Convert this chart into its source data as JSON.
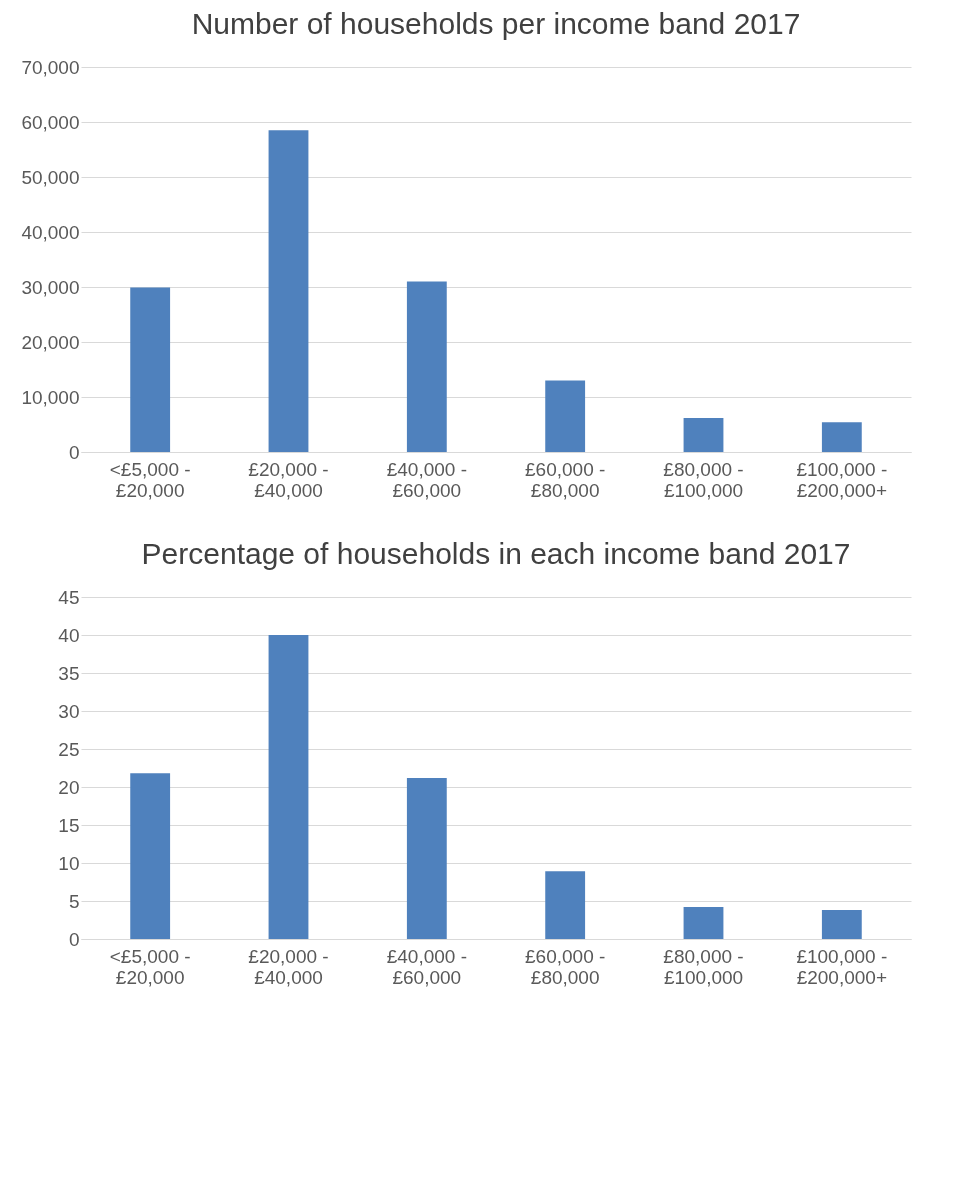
{
  "chart_data": [
    {
      "type": "bar",
      "title": "Number of households per income band 2017",
      "categories": [
        "<£5,000 - £20,000",
        "£20,000 - £40,000",
        "£40,000 - £60,000",
        "£60,000 - £80,000",
        "£80,000 - £100,000",
        "£100,000 - £200,000+"
      ],
      "values": [
        29900,
        58500,
        31000,
        13000,
        6200,
        5400
      ],
      "color": "#4f81bd",
      "ylim": [
        0,
        70000
      ],
      "yticks": [
        {
          "value": 0,
          "label": "0"
        },
        {
          "value": 10000,
          "label": "10,000"
        },
        {
          "value": 20000,
          "label": "20,000"
        },
        {
          "value": 30000,
          "label": "30,000"
        },
        {
          "value": 40000,
          "label": "40,000"
        },
        {
          "value": 50000,
          "label": "50,000"
        },
        {
          "value": 60000,
          "label": "60,000"
        },
        {
          "value": 70000,
          "label": "70,000"
        }
      ],
      "grid": "y"
    },
    {
      "type": "bar",
      "title": "Percentage of households in each income band 2017",
      "categories": [
        "<£5,000 - £20,000",
        "£20,000 - £40,000",
        "£40,000 - £60,000",
        "£60,000 - £80,000",
        "£80,000 - £100,000",
        "£100,000 - £200,000+"
      ],
      "values": [
        21.8,
        40,
        21.2,
        8.9,
        4.2,
        3.8
      ],
      "color": "#4f81bd",
      "ylim": [
        0,
        45
      ],
      "yticks": [
        0,
        5,
        10,
        15,
        20,
        25,
        30,
        35,
        40,
        45
      ],
      "grid": "y"
    }
  ]
}
